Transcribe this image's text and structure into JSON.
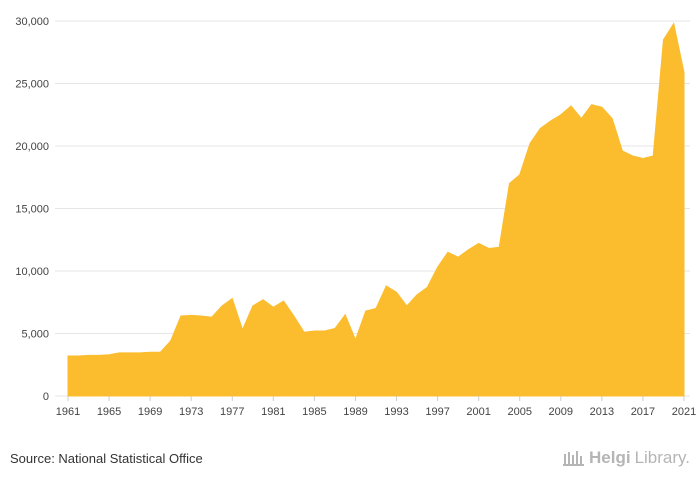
{
  "chart_data": {
    "type": "area",
    "title": "",
    "xlabel": "",
    "ylabel": "",
    "color": "#FBBD2E",
    "xlim": [
      1961,
      2021
    ],
    "ylim": [
      0,
      30000
    ],
    "yticks": [
      0,
      5000,
      10000,
      15000,
      20000,
      25000,
      30000
    ],
    "yticklabels": [
      "0",
      "5,000",
      "10,000",
      "15,000",
      "20,000",
      "25,000",
      "30,000"
    ],
    "xticks": [
      1961,
      1965,
      1969,
      1973,
      1977,
      1981,
      1985,
      1989,
      1993,
      1997,
      2001,
      2005,
      2009,
      2013,
      2017,
      2021
    ],
    "xticklabels": [
      "1961",
      "1965",
      "1969",
      "1973",
      "1977",
      "1981",
      "1985",
      "1989",
      "1993",
      "1997",
      "2001",
      "2005",
      "2009",
      "2013",
      "2017",
      "2021"
    ],
    "grid": true,
    "x": [
      1961,
      1962,
      1963,
      1964,
      1965,
      1966,
      1967,
      1968,
      1969,
      1970,
      1971,
      1972,
      1973,
      1974,
      1975,
      1976,
      1977,
      1978,
      1979,
      1980,
      1981,
      1982,
      1983,
      1984,
      1985,
      1986,
      1987,
      1988,
      1989,
      1990,
      1991,
      1992,
      1993,
      1994,
      1995,
      1996,
      1997,
      1998,
      1999,
      2000,
      2001,
      2002,
      2003,
      2004,
      2005,
      2006,
      2007,
      2008,
      2009,
      2010,
      2011,
      2012,
      2013,
      2014,
      2015,
      2016,
      2017,
      2018,
      2019,
      2020,
      2021
    ],
    "values": [
      3200,
      3200,
      3250,
      3250,
      3300,
      3450,
      3450,
      3450,
      3500,
      3500,
      4400,
      6400,
      6450,
      6400,
      6300,
      7200,
      7800,
      5300,
      7200,
      7700,
      7100,
      7600,
      6400,
      5100,
      5200,
      5200,
      5400,
      6500,
      4500,
      6800,
      7000,
      8800,
      8300,
      7200,
      8100,
      8700,
      10300,
      11500,
      11100,
      11700,
      12200,
      11800,
      11900,
      17000,
      17700,
      20200,
      21400,
      22000,
      22500,
      23200,
      22200,
      23300,
      23100,
      22200,
      19600,
      19200,
      19000,
      19200,
      28500,
      29800,
      25900
    ]
  },
  "footer": {
    "source": "Source: National Statistical Office",
    "logo_name": "Helgi",
    "logo_suffix": "Library."
  }
}
